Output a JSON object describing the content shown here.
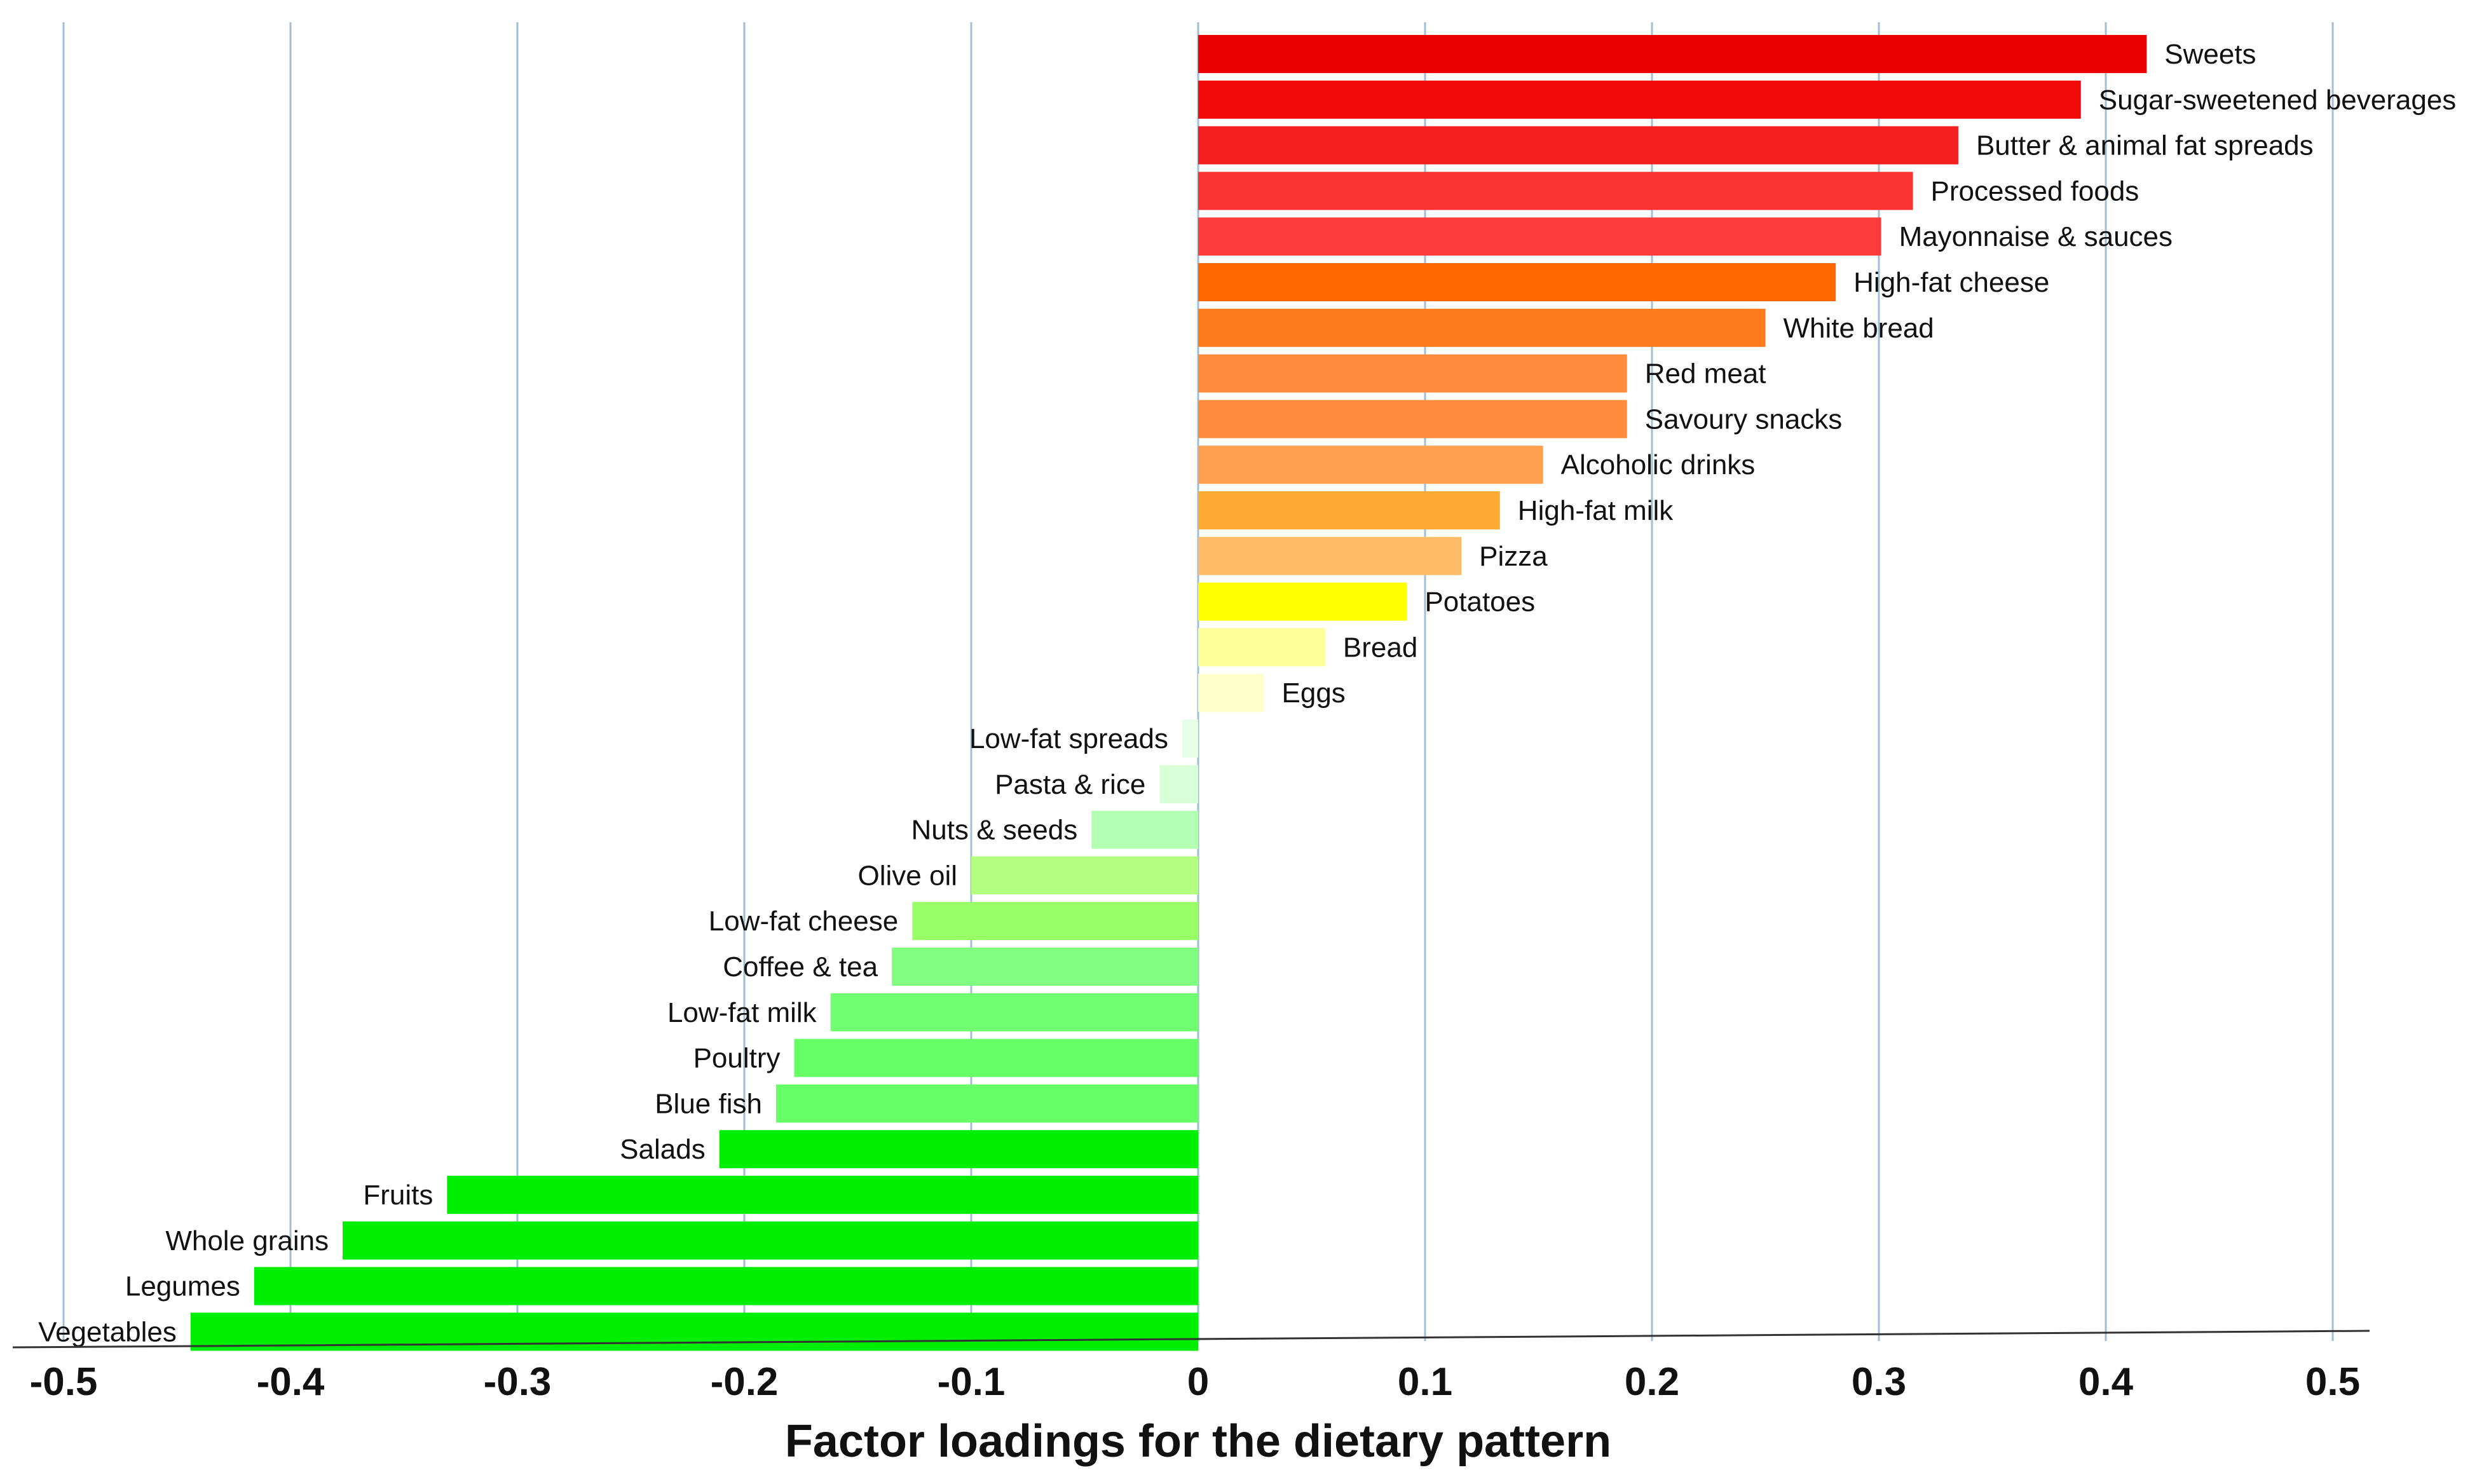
{
  "chart_data": {
    "type": "bar",
    "orientation": "horizontal",
    "title": "",
    "xlabel": "Factor loadings for the dietary pattern",
    "ylabel": "",
    "xlim": [
      -0.5,
      0.5
    ],
    "grid": "vertical",
    "legend": "none",
    "x_ticks": [
      -0.5,
      -0.4,
      -0.3,
      -0.2,
      -0.1,
      0,
      0.1,
      0.2,
      0.3,
      0.4,
      0.5
    ],
    "x_tick_labels": [
      "-0.5",
      "-0.4",
      "-0.3",
      "-0.2",
      "-0.1",
      "0",
      "0.1",
      "0.2",
      "0.3",
      "0.4",
      "0.5"
    ],
    "categories": [
      "Sweets",
      "Sugar-sweetened beverages",
      "Butter & animal fat spreads",
      "Processed foods",
      "Mayonnaise & sauces",
      "High-fat cheese",
      "White bread",
      "Red meat",
      "Savoury snacks",
      "Alcoholic drinks",
      "High-fat milk",
      "Pizza",
      "Potatoes",
      "Bread",
      "Eggs",
      "Low-fat spreads",
      "Pasta & rice",
      "Nuts & seeds",
      "Olive oil",
      "Low-fat cheese",
      "Coffee & tea",
      "Low-fat milk",
      "Poultry",
      "Blue fish",
      "Salads",
      "Fruits",
      "Whole grains",
      "Legumes",
      "Vegetables"
    ],
    "values": [
      0.418,
      0.389,
      0.335,
      0.315,
      0.301,
      0.281,
      0.25,
      0.189,
      0.189,
      0.152,
      0.133,
      0.116,
      0.092,
      0.056,
      0.029,
      -0.007,
      -0.017,
      -0.047,
      -0.1,
      -0.126,
      -0.135,
      -0.162,
      -0.178,
      -0.186,
      -0.211,
      -0.331,
      -0.377,
      -0.416,
      -0.444
    ],
    "colors": [
      "#ee0000",
      "#f20a0a",
      "#f51e1e",
      "#fa3232",
      "#fb3c3c",
      "#ff6600",
      "#ff7a1a",
      "#ff8c3c",
      "#ff8c3c",
      "#ffa04f",
      "#ffaa33",
      "#ffbb66",
      "#ffff00",
      "#ffff99",
      "#ffffcc",
      "#e6ffe6",
      "#d9ffd9",
      "#b3ffb3",
      "#b3ff80",
      "#99ff66",
      "#80ff80",
      "#70ff70",
      "#66ff66",
      "#66ff66",
      "#00ee00",
      "#00ee00",
      "#00ee00",
      "#00ee00",
      "#00ee00"
    ]
  }
}
